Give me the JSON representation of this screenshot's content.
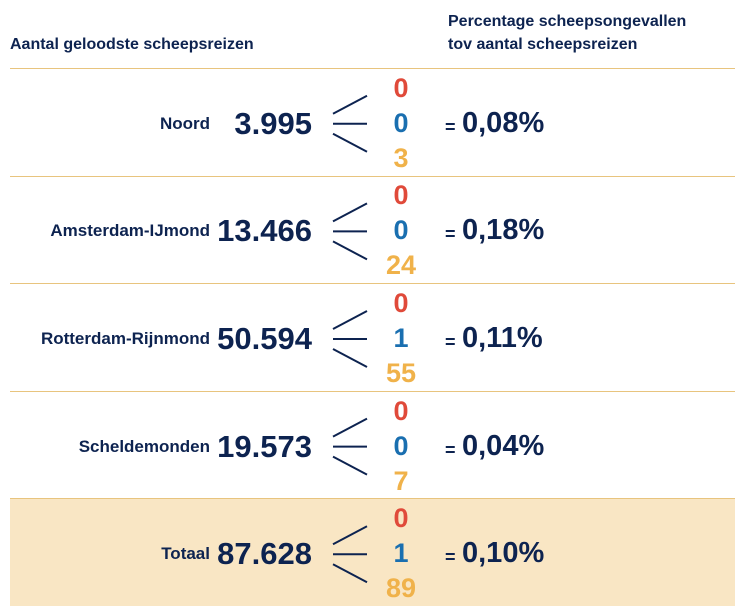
{
  "header": {
    "left": "Aantal geloodste scheepsreizen",
    "right": [
      "Percentage scheepsongevallen",
      "tov aantal scheepsreizen"
    ]
  },
  "equals_sign": "=",
  "rows": [
    {
      "name": "Noord",
      "voyages": "3.995",
      "counts": [
        "0",
        "0",
        "3"
      ],
      "percentage": "0,08%"
    },
    {
      "name": "Amsterdam-IJmond",
      "voyages": "13.466",
      "counts": [
        "0",
        "0",
        "24"
      ],
      "percentage": "0,18%"
    },
    {
      "name": "Rotterdam-Rijnmond",
      "voyages": "50.594",
      "counts": [
        "0",
        "1",
        "55"
      ],
      "percentage": "0,11%"
    },
    {
      "name": "Scheldemonden",
      "voyages": "19.573",
      "counts": [
        "0",
        "0",
        "7"
      ],
      "percentage": "0,04%"
    },
    {
      "name": "Totaal",
      "voyages": "87.628",
      "counts": [
        "0",
        "1",
        "89"
      ],
      "percentage": "0,10%"
    }
  ]
}
